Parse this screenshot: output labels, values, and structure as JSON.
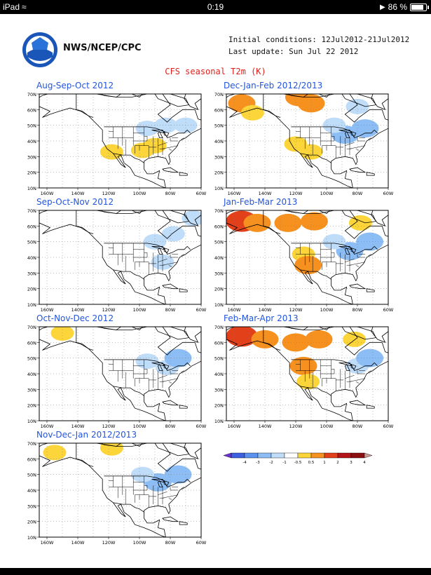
{
  "status_bar": {
    "device": "iPad",
    "time": "0:19",
    "battery": "86 %",
    "battery_level": 0.86
  },
  "header": {
    "agency": "NWS/NCEP/CPC",
    "initial_conditions": "Initial conditions: 12Jul2012-21Jul2012",
    "last_update": "Last update: Sun Jul 22 2012",
    "figure_title": "CFS seasonal T2m (K)"
  },
  "chart_data": [
    {
      "type": "heatmap",
      "title": "Aug-Sep-Oct 2012",
      "xlabels": [
        "160W",
        "140W",
        "120W",
        "100W",
        "80W",
        "60W"
      ],
      "ylabels": [
        "10N",
        "20N",
        "30N",
        "40N",
        "50N",
        "60N",
        "70N"
      ],
      "anomalies": [
        {
          "lon": -83,
          "lat": 50,
          "value": -0.75
        },
        {
          "lon": -95,
          "lat": 48,
          "value": -0.75
        },
        {
          "lon": -90,
          "lat": 37,
          "value": 0.75
        },
        {
          "lon": -98,
          "lat": 34,
          "value": 0.75
        },
        {
          "lon": -118,
          "lat": 33,
          "value": 0.75
        },
        {
          "lon": -70,
          "lat": 50,
          "value": -0.75
        }
      ]
    },
    {
      "type": "heatmap",
      "title": "Dec-Jan-Feb 2012/2013",
      "xlabels": [
        "160W",
        "140W",
        "120W",
        "100W",
        "80W",
        "60W"
      ],
      "ylabels": [
        "10N",
        "20N",
        "30N",
        "40N",
        "50N",
        "60N",
        "70N"
      ],
      "anomalies": [
        {
          "lon": -155,
          "lat": 64,
          "value": 1.5
        },
        {
          "lon": -148,
          "lat": 58,
          "value": 0.75
        },
        {
          "lon": -118,
          "lat": 68,
          "value": 1.5
        },
        {
          "lon": -110,
          "lat": 64,
          "value": 1.5
        },
        {
          "lon": -88,
          "lat": 44,
          "value": -1.5
        },
        {
          "lon": -75,
          "lat": 48,
          "value": -1.5
        },
        {
          "lon": -95,
          "lat": 50,
          "value": -0.75
        },
        {
          "lon": -120,
          "lat": 38,
          "value": 0.75
        },
        {
          "lon": -110,
          "lat": 33,
          "value": 0.75
        },
        {
          "lon": -80,
          "lat": 62,
          "value": -0.75
        }
      ]
    },
    {
      "type": "heatmap",
      "title": "Sep-Oct-Nov 2012",
      "xlabels": [
        "160W",
        "140W",
        "120W",
        "100W",
        "80W",
        "60W"
      ],
      "ylabels": [
        "10N",
        "20N",
        "30N",
        "40N",
        "50N",
        "60N",
        "70N"
      ],
      "anomalies": [
        {
          "lon": -90,
          "lat": 50,
          "value": -0.75
        },
        {
          "lon": -78,
          "lat": 55,
          "value": -0.75
        },
        {
          "lon": -85,
          "lat": 37,
          "value": -0.75
        },
        {
          "lon": -65,
          "lat": 65,
          "value": -0.75
        }
      ]
    },
    {
      "type": "heatmap",
      "title": "Jan-Feb-Mar 2013",
      "xlabels": [
        "160W",
        "140W",
        "120W",
        "100W",
        "80W",
        "60W"
      ],
      "ylabels": [
        "10N",
        "20N",
        "30N",
        "40N",
        "50N",
        "60N",
        "70N"
      ],
      "anomalies": [
        {
          "lon": -155,
          "lat": 63,
          "value": 2.5
        },
        {
          "lon": -145,
          "lat": 62,
          "value": 1.5
        },
        {
          "lon": -125,
          "lat": 62,
          "value": 1.5
        },
        {
          "lon": -108,
          "lat": 63,
          "value": 1.5
        },
        {
          "lon": -115,
          "lat": 42,
          "value": 0.75
        },
        {
          "lon": -112,
          "lat": 35,
          "value": 1.5
        },
        {
          "lon": -85,
          "lat": 44,
          "value": -1.5
        },
        {
          "lon": -72,
          "lat": 50,
          "value": -1.5
        },
        {
          "lon": -95,
          "lat": 50,
          "value": -0.75
        },
        {
          "lon": -78,
          "lat": 62,
          "value": 0.75
        }
      ]
    },
    {
      "type": "heatmap",
      "title": "Oct-Nov-Dec 2012",
      "xlabels": [
        "160W",
        "140W",
        "120W",
        "100W",
        "80W",
        "60W"
      ],
      "ylabels": [
        "10N",
        "20N",
        "30N",
        "40N",
        "50N",
        "60N",
        "70N"
      ],
      "anomalies": [
        {
          "lon": -150,
          "lat": 66,
          "value": 0.75
        },
        {
          "lon": -82,
          "lat": 44,
          "value": -0.75
        },
        {
          "lon": -75,
          "lat": 50,
          "value": -1.5
        },
        {
          "lon": -95,
          "lat": 48,
          "value": -0.75
        }
      ]
    },
    {
      "type": "heatmap",
      "title": "Feb-Mar-Apr 2013",
      "xlabels": [
        "160W",
        "140W",
        "120W",
        "100W",
        "80W",
        "60W"
      ],
      "ylabels": [
        "10N",
        "20N",
        "30N",
        "40N",
        "50N",
        "60N",
        "70N"
      ],
      "anomalies": [
        {
          "lon": -155,
          "lat": 64,
          "value": 2.5
        },
        {
          "lon": -140,
          "lat": 62,
          "value": 1.5
        },
        {
          "lon": -120,
          "lat": 60,
          "value": 1.5
        },
        {
          "lon": -105,
          "lat": 62,
          "value": 1.5
        },
        {
          "lon": -115,
          "lat": 45,
          "value": 1.5
        },
        {
          "lon": -112,
          "lat": 35,
          "value": 0.75
        },
        {
          "lon": -80,
          "lat": 45,
          "value": -0.75
        },
        {
          "lon": -72,
          "lat": 50,
          "value": -1.5
        },
        {
          "lon": -82,
          "lat": 62,
          "value": 0.75
        }
      ]
    },
    {
      "type": "heatmap",
      "title": "Nov-Dec-Jan 2012/2013",
      "xlabels": [
        "160W",
        "140W",
        "120W",
        "100W",
        "80W",
        "60W"
      ],
      "ylabels": [
        "10N",
        "20N",
        "30N",
        "40N",
        "50N",
        "60N",
        "70N"
      ],
      "anomalies": [
        {
          "lon": -155,
          "lat": 64,
          "value": 0.75
        },
        {
          "lon": -118,
          "lat": 67,
          "value": 0.75
        },
        {
          "lon": -88,
          "lat": 45,
          "value": -1.5
        },
        {
          "lon": -75,
          "lat": 50,
          "value": -1.5
        },
        {
          "lon": -98,
          "lat": 50,
          "value": -0.75
        }
      ]
    }
  ],
  "colorbar": {
    "labels": [
      "-4",
      "-3",
      "-2",
      "-1",
      "-0.5",
      "0.5",
      "1",
      "2",
      "3",
      "4"
    ],
    "colors": [
      "#6a2fd4",
      "#3d5fe0",
      "#5a92ee",
      "#8cbdf4",
      "#bfdcf8",
      "#ffffff",
      "#fbd53a",
      "#f6911f",
      "#e2401a",
      "#b3141a",
      "#8b0f10",
      "#c99a94"
    ]
  },
  "map_colors": {
    "ocean": "#ffffff",
    "coast": "#000000",
    "grid": "#7f7f7f"
  }
}
